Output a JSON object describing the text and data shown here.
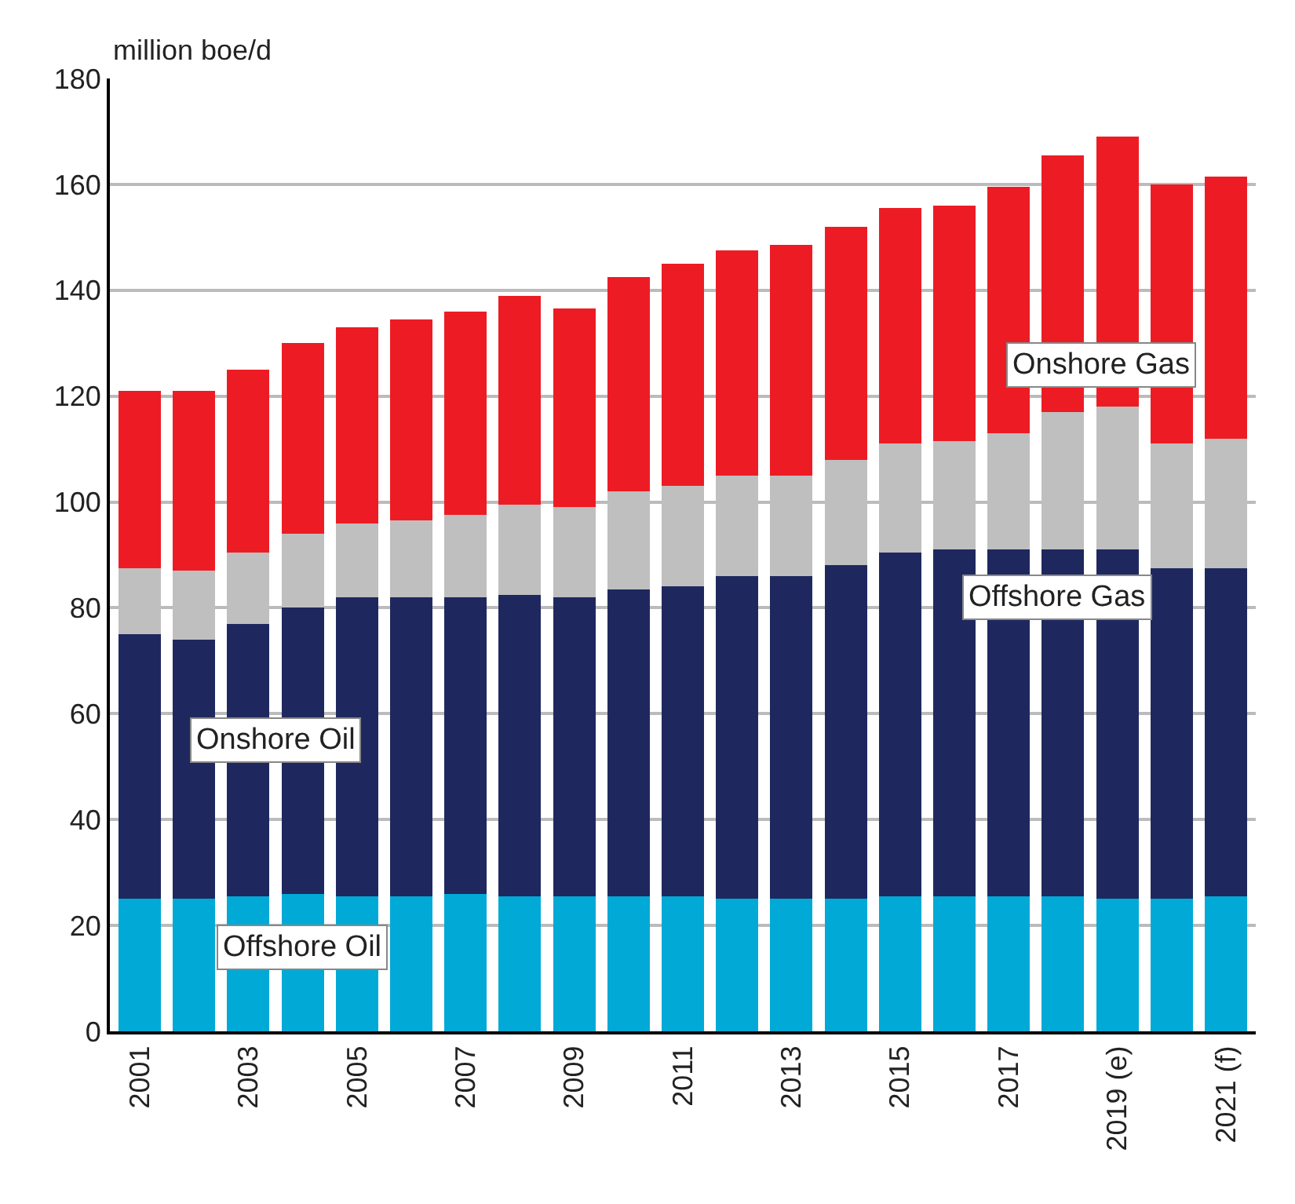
{
  "chart_data": {
    "type": "bar",
    "stacked": true,
    "ylabel": "million boe/d",
    "categories": [
      "2001",
      null,
      "2003",
      null,
      "2005",
      null,
      "2007",
      null,
      "2009",
      null,
      "2011",
      null,
      "2013",
      null,
      "2015",
      null,
      "2017",
      null,
      "2019 (e)",
      null,
      "2021 (f)"
    ],
    "series": [
      {
        "name": "Offshore Oil",
        "color": "#00a9d6",
        "values": [
          25,
          25,
          25.5,
          26,
          25.5,
          25.5,
          26,
          25.5,
          25.5,
          25.5,
          25.5,
          25,
          25,
          25,
          25.5,
          25.5,
          25.5,
          25.5,
          25,
          25,
          25.5
        ]
      },
      {
        "name": "Onshore Oil",
        "color": "#1f285e",
        "values": [
          50,
          49,
          51.5,
          54,
          56.5,
          56.5,
          56,
          57,
          56.5,
          58,
          58.5,
          61,
          61,
          63,
          65,
          65.5,
          65.5,
          65.5,
          66,
          62.5,
          62
        ]
      },
      {
        "name": "Offshore Gas",
        "color": "#bfbfbf",
        "values": [
          12.5,
          13,
          13.5,
          14,
          14,
          14.5,
          15.5,
          17,
          17,
          18.5,
          19,
          19,
          19,
          20,
          20.5,
          20.5,
          22,
          26,
          27,
          23.5,
          24.5
        ]
      },
      {
        "name": "Onshore Gas",
        "color": "#ed1c24",
        "values": [
          33.5,
          34,
          34.5,
          36,
          37,
          38,
          38.5,
          39.5,
          37.5,
          40.5,
          42,
          42.5,
          43.5,
          44,
          44.5,
          44.5,
          46.5,
          48.5,
          51,
          49,
          49.5
        ]
      }
    ],
    "ylim": [
      0,
      180
    ],
    "yticks": [
      0,
      20,
      40,
      60,
      80,
      100,
      120,
      140,
      160,
      180
    ],
    "grid": "y",
    "legend": false
  }
}
